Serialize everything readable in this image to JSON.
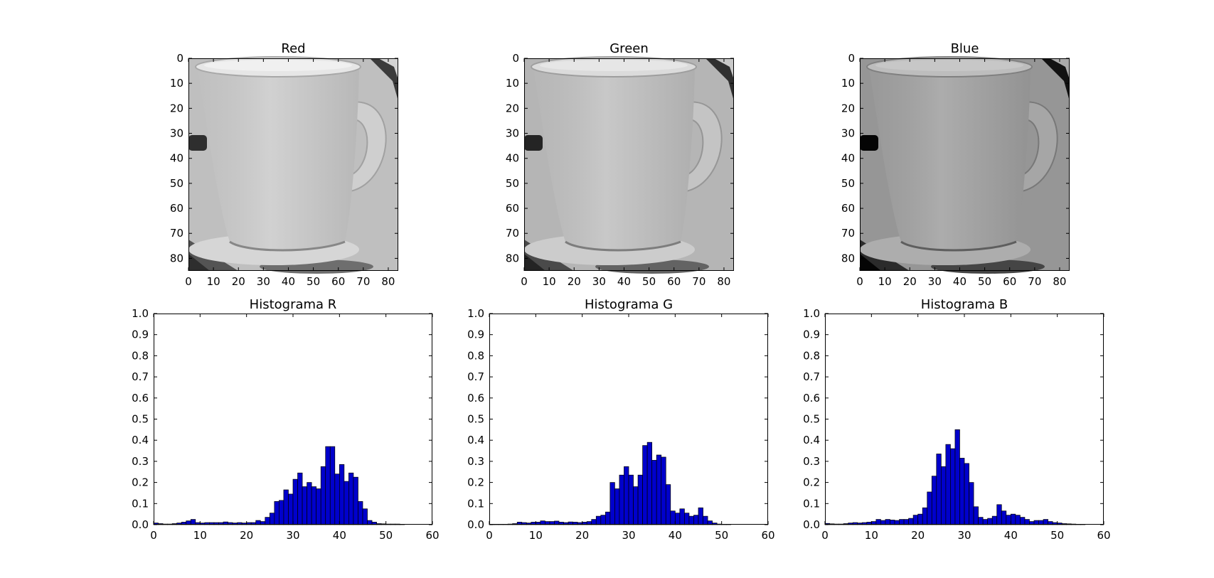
{
  "chart_data": [
    {
      "type": "heatmap",
      "title": "Red",
      "colormap": "gray",
      "xlim": [
        0,
        84
      ],
      "ylim": [
        85,
        0
      ],
      "xticks": [
        0,
        10,
        20,
        30,
        40,
        50,
        60,
        70,
        80
      ],
      "yticks": [
        0,
        10,
        20,
        30,
        40,
        50,
        60,
        70,
        80
      ],
      "channel_brightness": 0.78
    },
    {
      "type": "heatmap",
      "title": "Green",
      "colormap": "gray",
      "xlim": [
        0,
        84
      ],
      "ylim": [
        85,
        0
      ],
      "xticks": [
        0,
        10,
        20,
        30,
        40,
        50,
        60,
        70,
        80
      ],
      "yticks": [
        0,
        10,
        20,
        30,
        40,
        50,
        60,
        70,
        80
      ],
      "channel_brightness": 0.74
    },
    {
      "type": "heatmap",
      "title": "Blue",
      "colormap": "gray",
      "xlim": [
        0,
        84
      ],
      "ylim": [
        85,
        0
      ],
      "xticks": [
        0,
        10,
        20,
        30,
        40,
        50,
        60,
        70,
        80
      ],
      "yticks": [
        0,
        10,
        20,
        30,
        40,
        50,
        60,
        70,
        80
      ],
      "channel_brightness": 0.62
    },
    {
      "type": "bar",
      "title": "Histograma R",
      "xlim": [
        0,
        60
      ],
      "ylim": [
        0,
        1
      ],
      "xticks": [
        0,
        10,
        20,
        30,
        40,
        50,
        60
      ],
      "yticks": [
        "0.0",
        "0.1",
        "0.2",
        "0.3",
        "0.4",
        "0.5",
        "0.6",
        "0.7",
        "0.8",
        "0.9",
        "1.0"
      ],
      "bar_color": "#0000cc",
      "x": [
        0,
        1,
        2,
        3,
        4,
        5,
        6,
        7,
        8,
        9,
        10,
        11,
        12,
        13,
        14,
        15,
        16,
        17,
        18,
        19,
        20,
        21,
        22,
        23,
        24,
        25,
        26,
        27,
        28,
        29,
        30,
        31,
        32,
        33,
        34,
        35,
        36,
        37,
        38,
        39,
        40,
        41,
        42,
        43,
        44,
        45,
        46,
        47,
        48,
        49,
        50,
        51,
        52,
        53,
        54,
        55,
        56,
        57,
        58,
        59
      ],
      "values": [
        0.008,
        0.005,
        0.003,
        0.003,
        0.005,
        0.008,
        0.012,
        0.018,
        0.025,
        0.01,
        0.008,
        0.01,
        0.01,
        0.01,
        0.01,
        0.013,
        0.01,
        0.008,
        0.01,
        0.008,
        0.01,
        0.01,
        0.02,
        0.015,
        0.035,
        0.055,
        0.11,
        0.115,
        0.165,
        0.145,
        0.215,
        0.245,
        0.18,
        0.2,
        0.18,
        0.17,
        0.275,
        0.37,
        0.37,
        0.24,
        0.285,
        0.205,
        0.245,
        0.225,
        0.11,
        0.075,
        0.02,
        0.012,
        0.005,
        0.004,
        0.003,
        0.003,
        0.003,
        0.002,
        0,
        0,
        0,
        0,
        0,
        0
      ]
    },
    {
      "type": "bar",
      "title": "Histograma G",
      "xlim": [
        0,
        60
      ],
      "ylim": [
        0,
        1
      ],
      "xticks": [
        0,
        10,
        20,
        30,
        40,
        50,
        60
      ],
      "yticks": [
        "0.0",
        "0.1",
        "0.2",
        "0.3",
        "0.4",
        "0.5",
        "0.6",
        "0.7",
        "0.8",
        "0.9",
        "1.0"
      ],
      "bar_color": "#0000cc",
      "x": [
        0,
        1,
        2,
        3,
        4,
        5,
        6,
        7,
        8,
        9,
        10,
        11,
        12,
        13,
        14,
        15,
        16,
        17,
        18,
        19,
        20,
        21,
        22,
        23,
        24,
        25,
        26,
        27,
        28,
        29,
        30,
        31,
        32,
        33,
        34,
        35,
        36,
        37,
        38,
        39,
        40,
        41,
        42,
        43,
        44,
        45,
        46,
        47,
        48,
        49,
        50,
        51,
        52,
        53,
        54,
        55,
        56,
        57,
        58,
        59
      ],
      "values": [
        0.001,
        0.001,
        0.002,
        0.002,
        0.003,
        0.005,
        0.012,
        0.01,
        0.008,
        0.012,
        0.012,
        0.018,
        0.015,
        0.015,
        0.017,
        0.012,
        0.01,
        0.013,
        0.012,
        0.01,
        0.012,
        0.015,
        0.025,
        0.04,
        0.045,
        0.06,
        0.2,
        0.17,
        0.235,
        0.275,
        0.235,
        0.18,
        0.235,
        0.375,
        0.39,
        0.305,
        0.33,
        0.32,
        0.19,
        0.065,
        0.055,
        0.075,
        0.055,
        0.04,
        0.045,
        0.08,
        0.04,
        0.018,
        0.008,
        0.003,
        0.002,
        0.001,
        0,
        0,
        0,
        0,
        0,
        0,
        0,
        0
      ]
    },
    {
      "type": "bar",
      "title": "Histograma B",
      "xlim": [
        0,
        60
      ],
      "ylim": [
        0,
        1
      ],
      "xticks": [
        0,
        10,
        20,
        30,
        40,
        50,
        60
      ],
      "yticks": [
        "0.0",
        "0.1",
        "0.2",
        "0.3",
        "0.4",
        "0.5",
        "0.6",
        "0.7",
        "0.8",
        "0.9",
        "1.0"
      ],
      "bar_color": "#0000cc",
      "x": [
        0,
        1,
        2,
        3,
        4,
        5,
        6,
        7,
        8,
        9,
        10,
        11,
        12,
        13,
        14,
        15,
        16,
        17,
        18,
        19,
        20,
        21,
        22,
        23,
        24,
        25,
        26,
        27,
        28,
        29,
        30,
        31,
        32,
        33,
        34,
        35,
        36,
        37,
        38,
        39,
        40,
        41,
        42,
        43,
        44,
        45,
        46,
        47,
        48,
        49,
        50,
        51,
        52,
        53,
        54,
        55,
        56,
        57,
        58,
        59
      ],
      "values": [
        0.006,
        0.004,
        0.003,
        0.003,
        0.005,
        0.008,
        0.01,
        0.008,
        0.01,
        0.012,
        0.015,
        0.025,
        0.02,
        0.025,
        0.022,
        0.02,
        0.025,
        0.025,
        0.03,
        0.045,
        0.05,
        0.08,
        0.155,
        0.23,
        0.335,
        0.275,
        0.38,
        0.36,
        0.45,
        0.315,
        0.29,
        0.2,
        0.085,
        0.035,
        0.025,
        0.03,
        0.04,
        0.095,
        0.065,
        0.045,
        0.05,
        0.045,
        0.035,
        0.025,
        0.015,
        0.02,
        0.02,
        0.025,
        0.015,
        0.01,
        0.008,
        0.005,
        0.004,
        0.003,
        0.002,
        0.001,
        0,
        0,
        0,
        0
      ]
    }
  ]
}
